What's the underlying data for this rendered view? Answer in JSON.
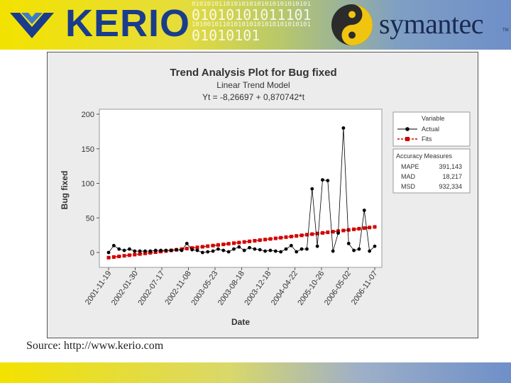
{
  "branding": {
    "kerio": "KERIO",
    "symantec": "symantec",
    "symantec_tm": "TM",
    "binary_lines": [
      "0101010110101010101010101010101",
      "01010101011101",
      "1010010110101010101010101010101",
      "01010101"
    ]
  },
  "source": {
    "label": "Source:",
    "url": "http://www.kerio.com"
  },
  "colors": {
    "actual": "#000000",
    "fits": "#d40000",
    "axis_label": "#333333"
  },
  "chart_data": {
    "type": "line",
    "title": "Trend Analysis Plot for Bug fixed",
    "subtitle": "Linear Trend Model",
    "equation": "Yt = -8,26697 + 0,870742*t",
    "xlabel": "Date",
    "ylabel": "Bug fixed",
    "ylim": [
      0,
      200
    ],
    "yticks": [
      0,
      50,
      100,
      150,
      200
    ],
    "xticks": [
      "2001-11-19",
      "2002-01-30",
      "2002-07-17",
      "2002-11-08",
      "2003-05-23",
      "2003-08-18",
      "2003-12-18",
      "2004-04-22",
      "2005-10-26",
      "2006-05-02",
      "2006-11-07"
    ],
    "legend": {
      "title": "Variable",
      "position": "right",
      "entries": [
        {
          "name": "Actual",
          "marker": "circle",
          "color": "#000000"
        },
        {
          "name": "Fits",
          "marker": "square",
          "color": "#d40000"
        }
      ]
    },
    "accuracy": {
      "title": "Accuracy Measures",
      "rows": [
        {
          "name": "MAPE",
          "value": "391,143"
        },
        {
          "name": "MAD",
          "value": "18,217"
        },
        {
          "name": "MSD",
          "value": "932,334"
        }
      ]
    },
    "series": [
      {
        "name": "Actual",
        "values": [
          0,
          10,
          5,
          3,
          5,
          2,
          2,
          2,
          2,
          3,
          3,
          3,
          3,
          4,
          3,
          13,
          4,
          3,
          0,
          1,
          2,
          5,
          3,
          1,
          5,
          8,
          3,
          7,
          5,
          4,
          2,
          3,
          2,
          1,
          5,
          10,
          1,
          5,
          5,
          92,
          9,
          105,
          104,
          2,
          28,
          180,
          13,
          3,
          5,
          61,
          2,
          9
        ]
      },
      {
        "name": "Fits",
        "values": [
          -7.4,
          -6.53,
          -5.65,
          -4.78,
          -3.91,
          -3.04,
          -2.17,
          -1.3,
          -0.43,
          0.44,
          1.31,
          2.18,
          3.05,
          3.92,
          4.79,
          5.67,
          6.54,
          7.41,
          8.28,
          9.15,
          10.02,
          10.89,
          11.76,
          12.63,
          13.5,
          14.37,
          15.24,
          16.12,
          16.99,
          17.86,
          18.73,
          19.6,
          20.47,
          21.34,
          22.21,
          23.08,
          23.95,
          24.82,
          25.7,
          26.57,
          27.44,
          28.31,
          29.18,
          30.05,
          30.92,
          31.79,
          32.66,
          33.53,
          34.4,
          35.27,
          36.15,
          37.02
        ]
      }
    ]
  }
}
